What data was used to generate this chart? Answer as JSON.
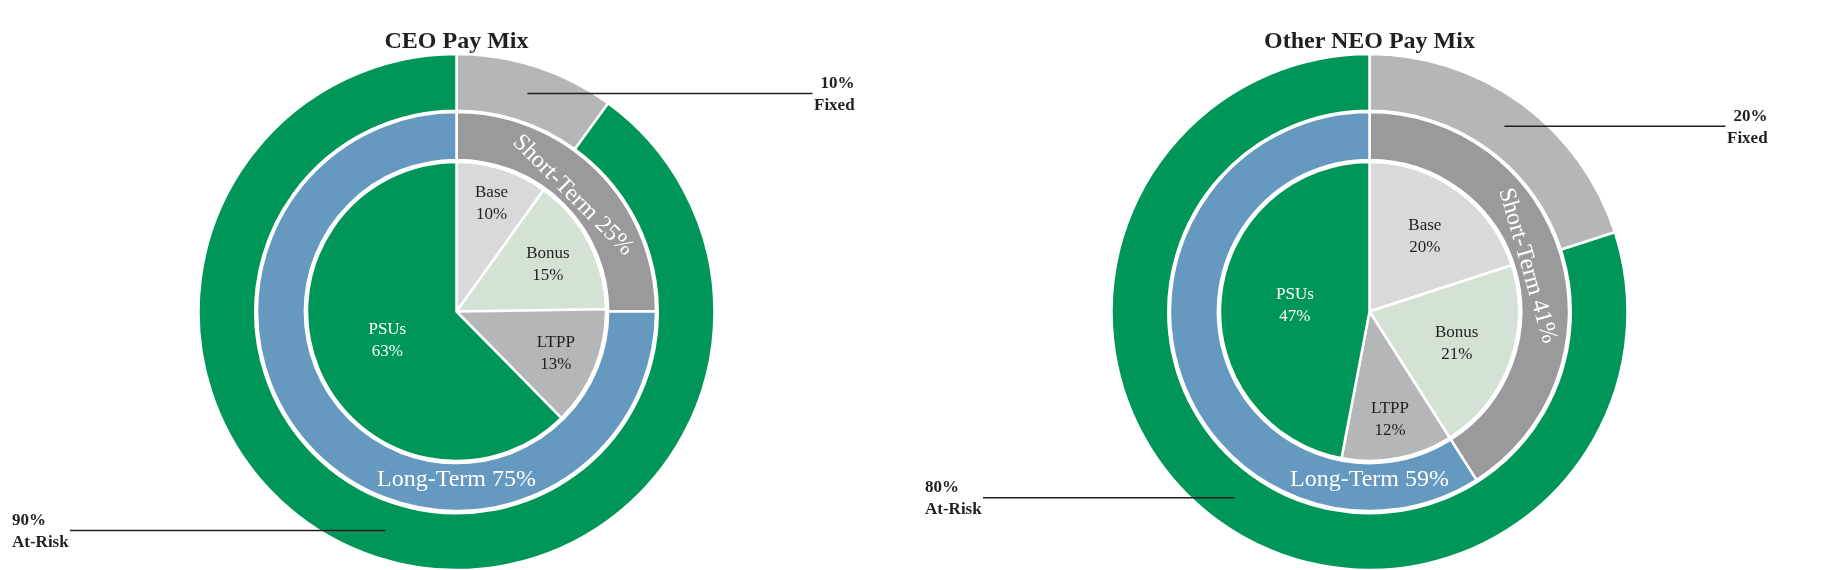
{
  "chart_data": [
    {
      "type": "donut",
      "title": "CEO Pay Mix",
      "categories": [
        "Fixed",
        "At-Risk"
      ],
      "values": [
        10,
        90
      ],
      "value_labels": [
        "10%",
        "90%"
      ],
      "colors": [
        "#b5b6b8",
        "#00965a"
      ]
    },
    {
      "type": "donut",
      "categories": [
        "Short-Term",
        "Long-Term"
      ],
      "values": [
        25,
        75
      ],
      "value_labels": [
        "25%",
        "75%"
      ],
      "colors": [
        "#9a9a9c",
        "#6699c0"
      ]
    },
    {
      "type": "pie",
      "categories": [
        "Base",
        "Bonus",
        "LTPP",
        "PSUs"
      ],
      "values": [
        10,
        15,
        13,
        63
      ],
      "value_labels": [
        "10%",
        "15%",
        "13%",
        "63%"
      ],
      "colors": [
        "#d9d9da",
        "#d3e2d5",
        "#b5b6b8",
        "#00965a"
      ]
    },
    {
      "type": "donut",
      "title": "Other NEO Pay Mix",
      "categories": [
        "Fixed",
        "At-Risk"
      ],
      "values": [
        20,
        80
      ],
      "value_labels": [
        "20%",
        "80%"
      ],
      "colors": [
        "#b5b6b8",
        "#00965a"
      ]
    },
    {
      "type": "donut",
      "categories": [
        "Short-Term",
        "Long-Term"
      ],
      "values": [
        41,
        59
      ],
      "value_labels": [
        "41%",
        "59%"
      ],
      "colors": [
        "#9a9a9c",
        "#6699c0"
      ]
    },
    {
      "type": "pie",
      "categories": [
        "Base",
        "Bonus",
        "LTPP",
        "PSUs"
      ],
      "values": [
        20,
        21,
        12,
        47
      ],
      "value_labels": [
        "20%",
        "21%",
        "12%",
        "47%"
      ],
      "colors": [
        "#d9d9da",
        "#d3e2d5",
        "#b5b6b8",
        "#00965a"
      ]
    }
  ]
}
